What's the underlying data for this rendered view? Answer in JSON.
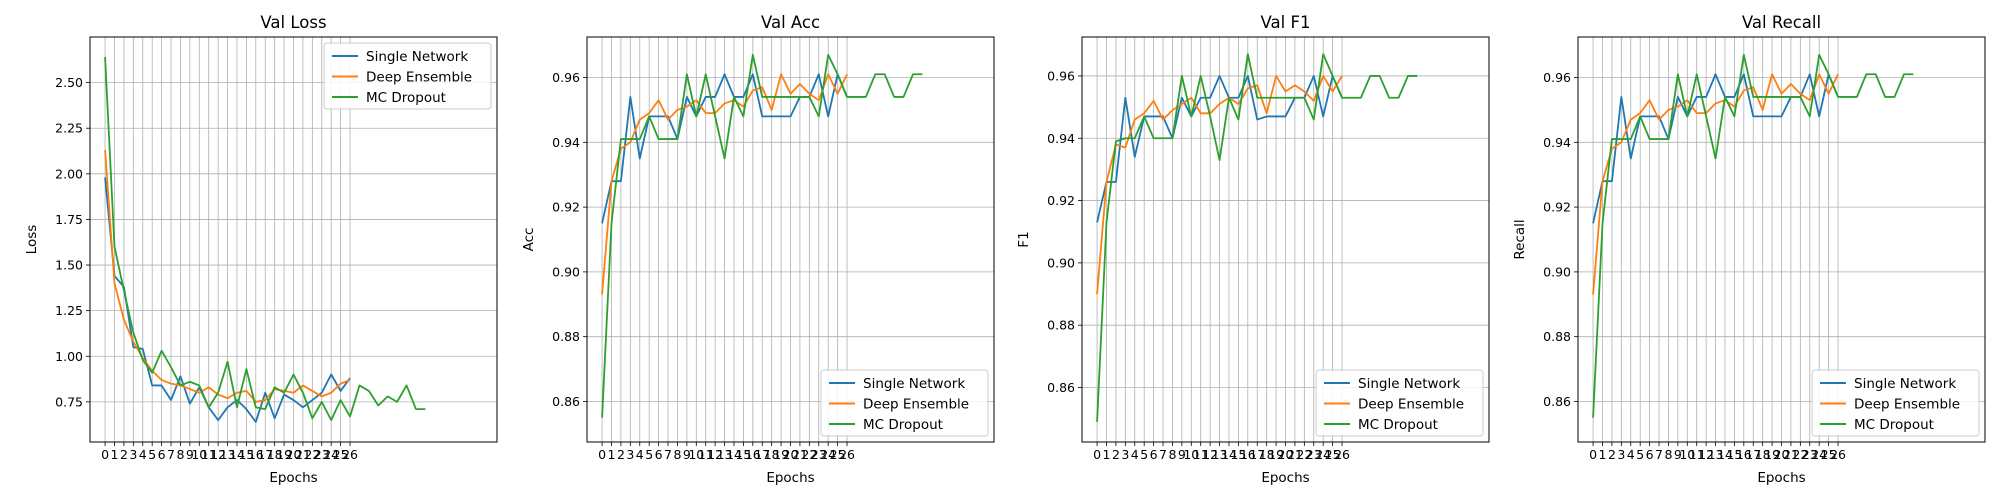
{
  "colors": {
    "Single Network": "#1f77b4",
    "Deep Ensemble": "#ff7f0e",
    "MC Dropout": "#2ca02c"
  },
  "chart_data": [
    {
      "type": "line",
      "title": "Val Loss",
      "xlabel": "Epochs",
      "ylabel": "Loss",
      "xlim": [
        -1.6,
        41.6
      ],
      "ylim": [
        0.53,
        2.75
      ],
      "xticks": [
        0,
        1,
        2,
        3,
        4,
        5,
        6,
        7,
        8,
        9,
        10,
        11,
        12,
        13,
        14,
        15,
        16,
        17,
        18,
        19,
        20,
        21,
        22,
        23,
        24,
        25,
        26
      ],
      "yticks": [
        0.75,
        1.0,
        1.25,
        1.5,
        1.75,
        2.0,
        2.25,
        2.5
      ],
      "ytick_labels": [
        "0.75",
        "1.00",
        "1.25",
        "1.50",
        "1.75",
        "2.00",
        "2.25",
        "2.50"
      ],
      "grid": true,
      "legend": "top-right",
      "series": [
        {
          "name": "Single Network",
          "values": [
            1.98,
            1.44,
            1.38,
            1.05,
            1.04,
            0.84,
            0.84,
            0.76,
            0.89,
            0.74,
            0.83,
            0.72,
            0.65,
            0.72,
            0.76,
            0.71,
            0.64,
            0.8,
            0.66,
            0.79,
            0.76,
            0.72,
            0.76,
            0.8,
            0.9,
            0.81,
            0.88
          ]
        },
        {
          "name": "Deep Ensemble",
          "values": [
            2.13,
            1.4,
            1.2,
            1.08,
            0.99,
            0.92,
            0.87,
            0.85,
            0.84,
            0.82,
            0.8,
            0.83,
            0.79,
            0.77,
            0.8,
            0.81,
            0.75,
            0.76,
            0.82,
            0.81,
            0.8,
            0.84,
            0.81,
            0.78,
            0.8,
            0.85,
            0.87
          ]
        },
        {
          "name": "MC Dropout",
          "values": [
            2.64,
            1.6,
            1.36,
            1.13,
            0.98,
            0.91,
            1.03,
            0.94,
            0.84,
            0.86,
            0.84,
            0.72,
            0.8,
            0.97,
            0.72,
            0.93,
            0.72,
            0.71,
            0.83,
            0.8,
            0.9,
            0.8,
            0.66,
            0.75,
            0.65,
            0.76,
            0.67,
            0.84,
            0.81,
            0.73,
            0.78,
            0.75,
            0.84,
            0.71,
            0.71
          ]
        }
      ]
    },
    {
      "type": "line",
      "title": "Val Acc",
      "xlabel": "Epochs",
      "ylabel": "Acc",
      "xlim": [
        -1.6,
        41.6
      ],
      "ylim": [
        0.8475,
        0.9725
      ],
      "xticks": [
        0,
        1,
        2,
        3,
        4,
        5,
        6,
        7,
        8,
        9,
        10,
        11,
        12,
        13,
        14,
        15,
        16,
        17,
        18,
        19,
        20,
        21,
        22,
        23,
        24,
        25,
        26
      ],
      "yticks": [
        0.86,
        0.88,
        0.9,
        0.92,
        0.94,
        0.96
      ],
      "ytick_labels": [
        "0.86",
        "0.88",
        "0.90",
        "0.92",
        "0.94",
        "0.96"
      ],
      "grid": true,
      "legend": "bottom-right",
      "series": [
        {
          "name": "Single Network",
          "values": [
            0.915,
            0.928,
            0.928,
            0.954,
            0.935,
            0.948,
            0.948,
            0.948,
            0.941,
            0.954,
            0.948,
            0.954,
            0.954,
            0.961,
            0.954,
            0.954,
            0.961,
            0.948,
            0.948,
            0.948,
            0.948,
            0.954,
            0.954,
            0.961,
            0.948,
            0.961,
            0.954
          ]
        },
        {
          "name": "Deep Ensemble",
          "values": [
            0.893,
            0.928,
            0.938,
            0.94,
            0.947,
            0.949,
            0.953,
            0.947,
            0.95,
            0.951,
            0.953,
            0.949,
            0.949,
            0.952,
            0.953,
            0.951,
            0.956,
            0.957,
            0.95,
            0.961,
            0.955,
            0.958,
            0.955,
            0.953,
            0.961,
            0.955,
            0.961
          ]
        },
        {
          "name": "MC Dropout",
          "values": [
            0.855,
            0.915,
            0.941,
            0.941,
            0.941,
            0.948,
            0.941,
            0.941,
            0.941,
            0.961,
            0.948,
            0.961,
            0.948,
            0.935,
            0.954,
            0.948,
            0.967,
            0.954,
            0.954,
            0.954,
            0.954,
            0.954,
            0.954,
            0.948,
            0.967,
            0.961,
            0.954,
            0.954,
            0.954,
            0.961,
            0.961,
            0.954,
            0.954,
            0.961,
            0.961
          ]
        }
      ]
    },
    {
      "type": "line",
      "title": "Val F1",
      "xlabel": "Epochs",
      "ylabel": "F1",
      "xlim": [
        -1.6,
        41.6
      ],
      "ylim": [
        0.8425,
        0.9725
      ],
      "xticks": [
        0,
        1,
        2,
        3,
        4,
        5,
        6,
        7,
        8,
        9,
        10,
        11,
        12,
        13,
        14,
        15,
        16,
        17,
        18,
        19,
        20,
        21,
        22,
        23,
        24,
        25,
        26
      ],
      "yticks": [
        0.86,
        0.88,
        0.9,
        0.92,
        0.94,
        0.96
      ],
      "ytick_labels": [
        "0.86",
        "0.88",
        "0.90",
        "0.92",
        "0.94",
        "0.96"
      ],
      "grid": true,
      "legend": "bottom-right",
      "series": [
        {
          "name": "Single Network",
          "values": [
            0.913,
            0.926,
            0.926,
            0.953,
            0.934,
            0.947,
            0.947,
            0.947,
            0.94,
            0.953,
            0.947,
            0.953,
            0.953,
            0.96,
            0.953,
            0.953,
            0.96,
            0.946,
            0.947,
            0.947,
            0.947,
            0.953,
            0.953,
            0.96,
            0.947,
            0.96,
            0.953
          ]
        },
        {
          "name": "Deep Ensemble",
          "values": [
            0.89,
            0.926,
            0.938,
            0.937,
            0.946,
            0.948,
            0.952,
            0.946,
            0.949,
            0.951,
            0.953,
            0.948,
            0.948,
            0.951,
            0.953,
            0.951,
            0.956,
            0.957,
            0.948,
            0.96,
            0.955,
            0.957,
            0.955,
            0.952,
            0.96,
            0.955,
            0.96
          ]
        },
        {
          "name": "MC Dropout",
          "values": [
            0.849,
            0.913,
            0.939,
            0.94,
            0.94,
            0.947,
            0.94,
            0.94,
            0.94,
            0.96,
            0.947,
            0.96,
            0.947,
            0.933,
            0.953,
            0.946,
            0.967,
            0.953,
            0.953,
            0.953,
            0.953,
            0.953,
            0.953,
            0.946,
            0.967,
            0.96,
            0.953,
            0.953,
            0.953,
            0.96,
            0.96,
            0.953,
            0.953,
            0.96,
            0.96
          ]
        }
      ]
    },
    {
      "type": "line",
      "title": "Val Recall",
      "xlabel": "Epochs",
      "ylabel": "Recall",
      "xlim": [
        -1.6,
        41.6
      ],
      "ylim": [
        0.8475,
        0.9725
      ],
      "xticks": [
        0,
        1,
        2,
        3,
        4,
        5,
        6,
        7,
        8,
        9,
        10,
        11,
        12,
        13,
        14,
        15,
        16,
        17,
        18,
        19,
        20,
        21,
        22,
        23,
        24,
        25,
        26
      ],
      "yticks": [
        0.86,
        0.88,
        0.9,
        0.92,
        0.94,
        0.96
      ],
      "ytick_labels": [
        "0.86",
        "0.88",
        "0.90",
        "0.92",
        "0.94",
        "0.96"
      ],
      "grid": true,
      "legend": "bottom-right",
      "series": [
        {
          "name": "Single Network",
          "values": [
            0.915,
            0.928,
            0.928,
            0.954,
            0.935,
            0.948,
            0.948,
            0.948,
            0.941,
            0.954,
            0.948,
            0.954,
            0.954,
            0.961,
            0.954,
            0.954,
            0.961,
            0.948,
            0.948,
            0.948,
            0.948,
            0.954,
            0.954,
            0.961,
            0.948,
            0.961,
            0.954
          ]
        },
        {
          "name": "Deep Ensemble",
          "values": [
            0.893,
            0.928,
            0.938,
            0.94,
            0.947,
            0.949,
            0.953,
            0.947,
            0.95,
            0.951,
            0.953,
            0.949,
            0.949,
            0.952,
            0.953,
            0.951,
            0.956,
            0.957,
            0.95,
            0.961,
            0.955,
            0.958,
            0.955,
            0.953,
            0.961,
            0.955,
            0.961
          ]
        },
        {
          "name": "MC Dropout",
          "values": [
            0.855,
            0.915,
            0.941,
            0.941,
            0.941,
            0.948,
            0.941,
            0.941,
            0.941,
            0.961,
            0.948,
            0.961,
            0.948,
            0.935,
            0.954,
            0.948,
            0.967,
            0.954,
            0.954,
            0.954,
            0.954,
            0.954,
            0.954,
            0.948,
            0.967,
            0.961,
            0.954,
            0.954,
            0.954,
            0.961,
            0.961,
            0.954,
            0.954,
            0.961,
            0.961
          ]
        }
      ]
    }
  ]
}
